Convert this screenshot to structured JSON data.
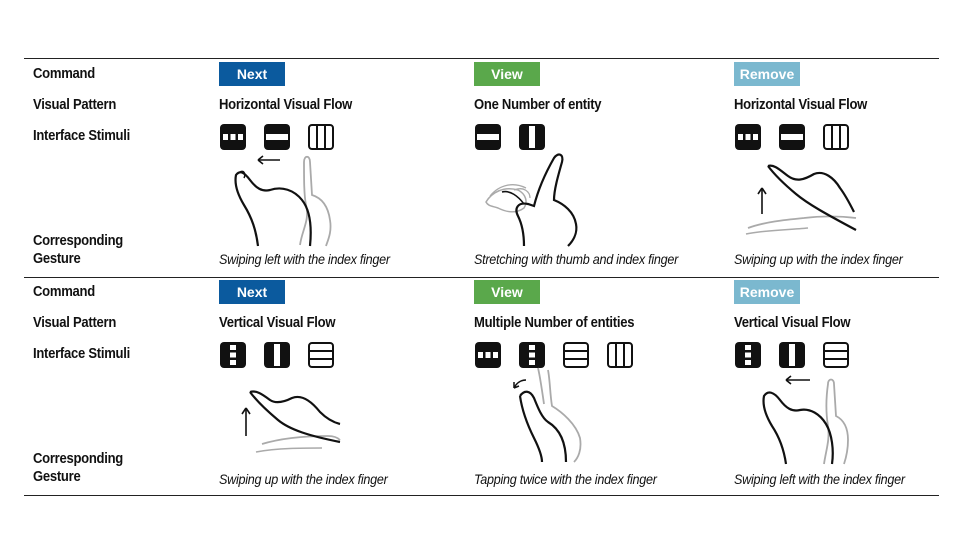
{
  "row_labels": {
    "command": "Command",
    "visual_pattern": "Visual Pattern",
    "interface_stimuli": "Interface Stimuli",
    "corresponding": "Corresponding",
    "gesture": "Gesture"
  },
  "colors": {
    "next": "#0b5a9e",
    "view": "#5aa84b",
    "remove": "#7bb8cf"
  },
  "sections": [
    {
      "cells": [
        {
          "command": "Next",
          "pattern": "Horizontal Visual Flow",
          "caption": "Swiping left with the index finger",
          "icons": [
            "horizontal-split-icon",
            "horizontal-bar-icon",
            "vertical-columns-icon"
          ]
        },
        {
          "command": "View",
          "pattern": "One Number of entity",
          "caption": "Stretching with thumb and index finger",
          "icons": [
            "horizontal-bar-icon",
            "vertical-bar-icon"
          ]
        },
        {
          "command": "Remove",
          "pattern": "Horizontal Visual Flow",
          "caption": "Swiping up with the index finger",
          "icons": [
            "horizontal-split-icon",
            "horizontal-bar-icon",
            "vertical-columns-icon"
          ]
        }
      ]
    },
    {
      "cells": [
        {
          "command": "Next",
          "pattern": "Vertical Visual Flow",
          "caption": "Swiping up with the index finger",
          "icons": [
            "vertical-split-icon",
            "vertical-bar-icon",
            "horizontal-rows-icon"
          ]
        },
        {
          "command": "View",
          "pattern": "Multiple Number of entities",
          "caption": "Tapping twice with the index finger",
          "icons": [
            "horizontal-split-icon",
            "vertical-split-icon",
            "horizontal-rows-icon",
            "vertical-columns-icon"
          ]
        },
        {
          "command": "Remove",
          "pattern": "Vertical Visual Flow",
          "caption": "Swiping left with the index finger",
          "icons": [
            "vertical-split-icon",
            "vertical-bar-icon",
            "horizontal-rows-icon"
          ]
        }
      ]
    }
  ]
}
